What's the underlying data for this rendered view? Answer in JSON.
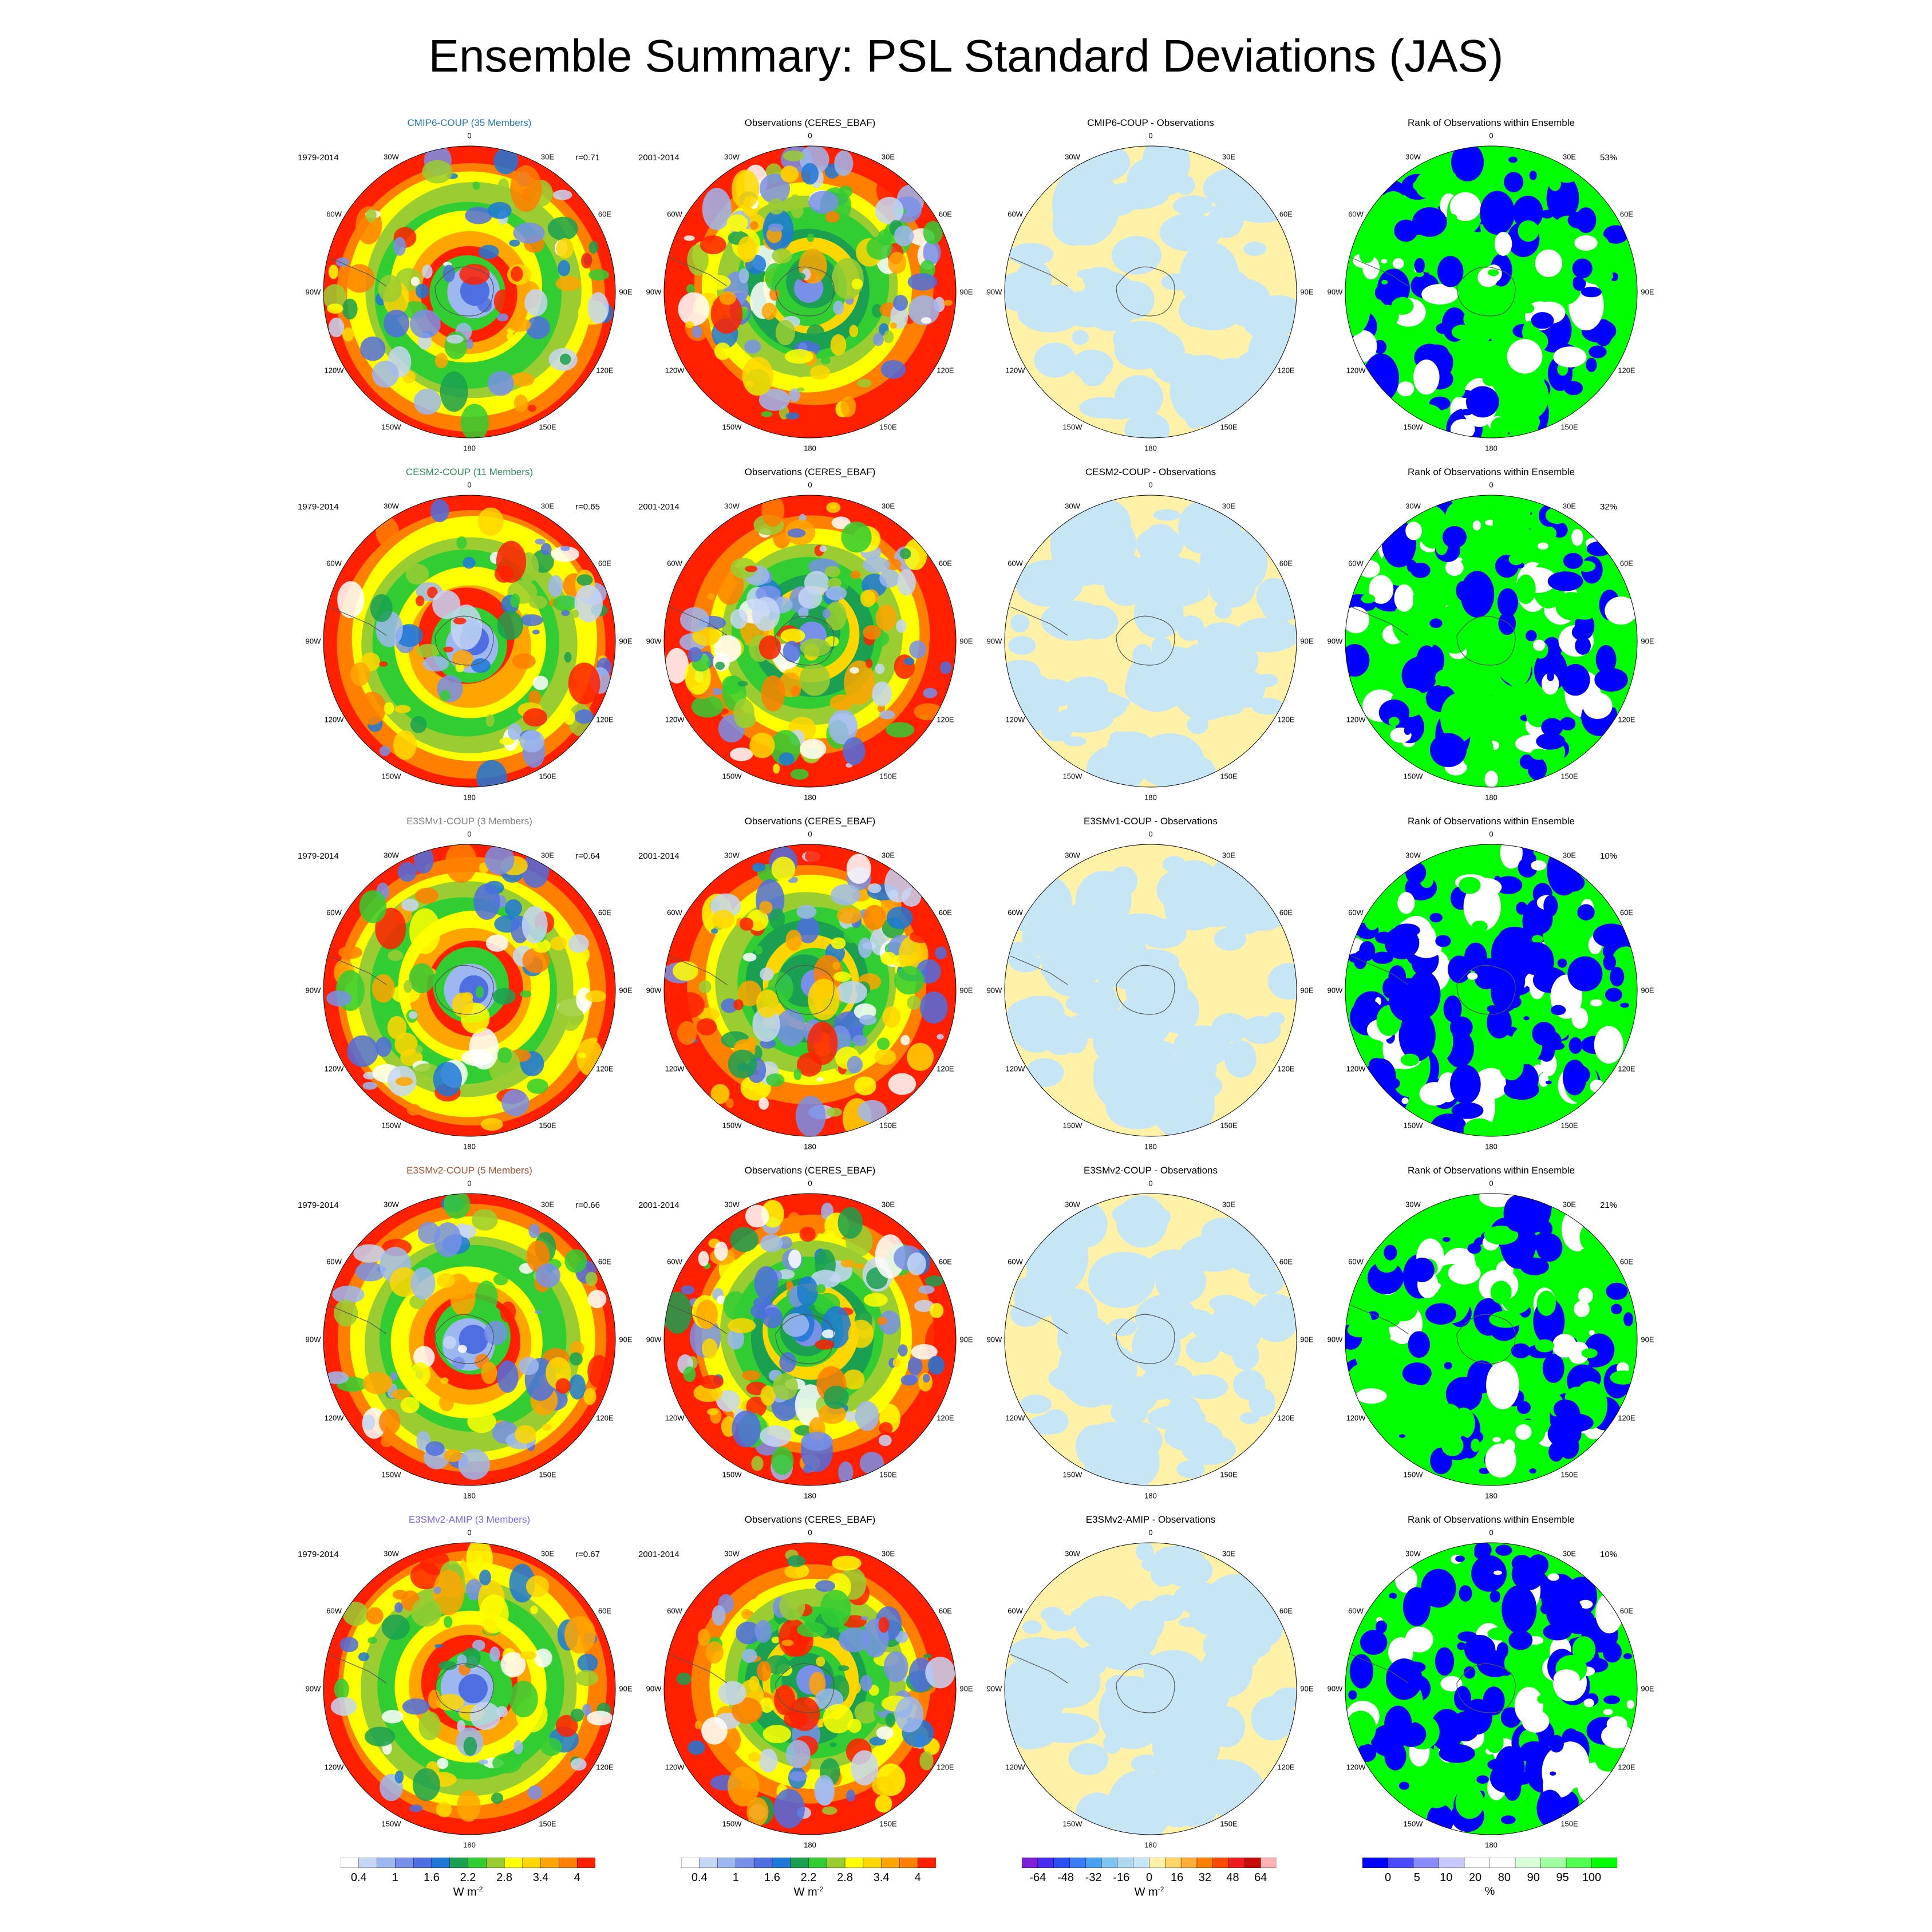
{
  "title": "Ensemble Summary: PSL Standard Deviations (JAS)",
  "column_titles": {
    "observations": "Observations (CERES_EBAF)",
    "rank": "Rank of Observations within Ensemble"
  },
  "years": {
    "model": "1979-2014",
    "obs": "2001-2014"
  },
  "longitude_labels": [
    "0",
    "30E",
    "60E",
    "90E",
    "120E",
    "150E",
    "180",
    "150W",
    "120W",
    "90W",
    "60W",
    "30W"
  ],
  "rows": [
    {
      "model_title": "CMIP6-COUP (35 Members)",
      "title_color": "#1f77b4",
      "corr": "r=0.71",
      "diff_title": "CMIP6-COUP - Observations",
      "rank_pct": "53%"
    },
    {
      "model_title": "CESM2-COUP (11 Members)",
      "title_color": "#2e8b57",
      "corr": "r=0.65",
      "diff_title": "CESM2-COUP - Observations",
      "rank_pct": "32%"
    },
    {
      "model_title": "E3SMv1-COUP (3 Members)",
      "title_color": "#7f7f7f",
      "corr": "r=0.64",
      "diff_title": "E3SMv1-COUP - Observations",
      "rank_pct": "10%"
    },
    {
      "model_title": "E3SMv2-COUP (5 Members)",
      "title_color": "#a0522d",
      "corr": "r=0.66",
      "diff_title": "E3SMv2-COUP - Observations",
      "rank_pct": "21%"
    },
    {
      "model_title": "E3SMv2-AMIP (3 Members)",
      "title_color": "#7b68ee",
      "corr": "r=0.67",
      "diff_title": "E3SMv2-AMIP - Observations",
      "rank_pct": "10%"
    }
  ],
  "colorbars": {
    "std": {
      "ticks": [
        "0.4",
        "1",
        "1.6",
        "2.2",
        "2.8",
        "3.4",
        "4"
      ],
      "unit": "W m",
      "unit_sup": "-2",
      "colors": [
        "#ffffff",
        "#c6d6f5",
        "#9db7f0",
        "#7890e8",
        "#4f6fe0",
        "#1f78d8",
        "#1aa050",
        "#32cd32",
        "#9acd32",
        "#ffff00",
        "#ffd700",
        "#ffa500",
        "#ff7f00",
        "#ff2000"
      ]
    },
    "diff": {
      "ticks": [
        "-64",
        "-48",
        "-32",
        "-16",
        "0",
        "16",
        "32",
        "48",
        "64"
      ],
      "unit": "W m",
      "unit_sup": "-2",
      "colors": [
        "#7f1fd8",
        "#4a2ef0",
        "#2a50f5",
        "#3a7af5",
        "#4aa0f0",
        "#7fc4ef",
        "#add8ef",
        "#c6e6f5",
        "#fff2a8",
        "#ffd56a",
        "#ffae3a",
        "#ff8000",
        "#ff4a00",
        "#ee1c1c",
        "#c80a0a",
        "#ffb0b0"
      ]
    },
    "rank": {
      "ticks": [
        "0",
        "5",
        "10",
        "20",
        "80",
        "90",
        "95",
        "100"
      ],
      "unit": "%",
      "colors": [
        "#0000ff",
        "#4a4aff",
        "#8a8aff",
        "#c8c8ff",
        "#ffffff",
        "#ffffff",
        "#d8ffd8",
        "#a0ffa0",
        "#50ff50",
        "#00ff00"
      ]
    }
  },
  "chart_data": {
    "type": "heatmap",
    "projection": "south polar stereographic",
    "variable": "PSL Standard Deviations (JAS)",
    "layout": "5 rows x 4 columns of polar maps",
    "columns": [
      "model ensemble",
      "Observations (CERES_EBAF)",
      "model - Observations",
      "Rank of Observations within Ensemble"
    ],
    "row_models": [
      "CMIP6-COUP (35 Members)",
      "CESM2-COUP (11 Members)",
      "E3SMv1-COUP (3 Members)",
      "E3SMv2-COUP (5 Members)",
      "E3SMv2-AMIP (3 Members)"
    ],
    "pattern_correlation": [
      0.71,
      0.65,
      0.64,
      0.66,
      0.67
    ],
    "rank_percent": [
      53,
      32,
      10,
      21,
      10
    ],
    "std_scale_levels": [
      0.4,
      1,
      1.6,
      2.2,
      2.8,
      3.4,
      4
    ],
    "diff_scale_levels": [
      -64,
      -48,
      -32,
      -16,
      0,
      16,
      32,
      48,
      64
    ],
    "rank_scale_levels": [
      0,
      5,
      10,
      20,
      80,
      90,
      95,
      100
    ]
  }
}
